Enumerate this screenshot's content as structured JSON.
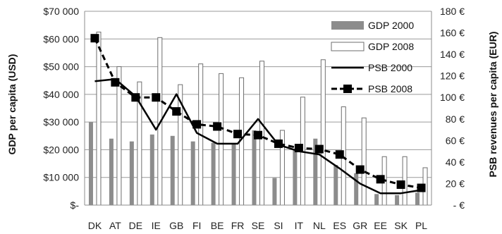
{
  "chart_data": {
    "type": "bar",
    "categories": [
      "DK",
      "AT",
      "DE",
      "IE",
      "GB",
      "FI",
      "BE",
      "FR",
      "SE",
      "SI",
      "IT",
      "NL",
      "ES",
      "GR",
      "EE",
      "SK",
      "PL"
    ],
    "ylabel": "GDP per capita (USD)",
    "y2label": "PSB revenues per capita (EUR)",
    "ylim": [
      0,
      70000
    ],
    "y2lim": [
      0,
      180
    ],
    "yticks": [
      "$-",
      "$10 000",
      "$20 000",
      "$30 000",
      "$40 000",
      "$50 000",
      "$60 000",
      "$70 000"
    ],
    "y2ticks": [
      "- €",
      "20 €",
      "40 €",
      "60 €",
      "80 €",
      "100 €",
      "120 €",
      "140 €",
      "160 €",
      "180 €"
    ],
    "grid": true,
    "legend_position": "top-right",
    "series": [
      {
        "name": "GDP 2000",
        "kind": "bar",
        "axis": "left",
        "color": "#8c8c8c",
        "values": [
          30000,
          24000,
          23000,
          25500,
          25000,
          23000,
          22500,
          22000,
          27000,
          9800,
          20000,
          24000,
          14500,
          11500,
          4000,
          3600,
          4500
        ]
      },
      {
        "name": "GDP 2008",
        "kind": "bar",
        "axis": "left",
        "color": "#ffffff",
        "values": [
          62500,
          50000,
          44500,
          60500,
          43500,
          51000,
          47500,
          46000,
          52000,
          27000,
          39000,
          52500,
          35500,
          31500,
          17500,
          17500,
          13500
        ]
      },
      {
        "name": "PSB 2000",
        "kind": "line",
        "axis": "right",
        "color": "#000000",
        "values": [
          115,
          117,
          101,
          70,
          103,
          67,
          57,
          57,
          80,
          56,
          50,
          47,
          34,
          20,
          11,
          11,
          14
        ]
      },
      {
        "name": "PSB 2008",
        "kind": "line",
        "axis": "right",
        "color": "#000000",
        "values": [
          155,
          114,
          100,
          100,
          87,
          75,
          73,
          66,
          65,
          57,
          53,
          52,
          47,
          33,
          24,
          19,
          16
        ]
      }
    ]
  }
}
